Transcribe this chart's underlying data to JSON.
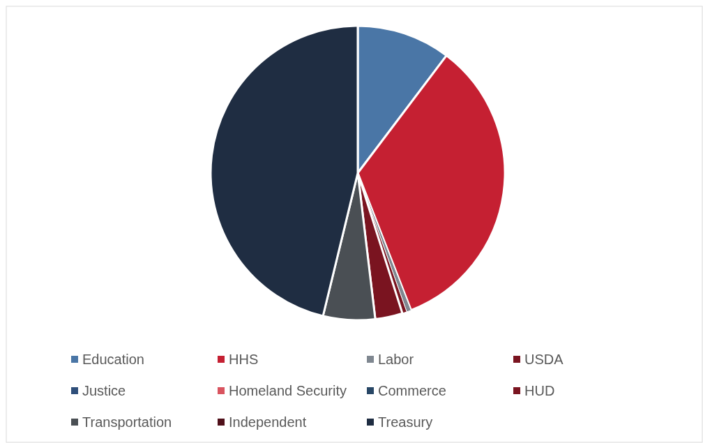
{
  "chart_data": {
    "type": "pie",
    "legend": "bottom",
    "categories": [
      "Education",
      "HHS",
      "Labor",
      "USDA",
      "Justice",
      "Homeland Security",
      "Commerce",
      "HUD",
      "Transportation",
      "Independent",
      "Treasury"
    ],
    "values": [
      10.3,
      33.8,
      0.5,
      0.5,
      null,
      null,
      null,
      3.0,
      5.7,
      null,
      46.2
    ],
    "colors": [
      "#4a76a6",
      "#c52032",
      "#7f8790",
      "#7a1420",
      "#2f4f7a",
      "#d9545f",
      "#284766",
      "#7a1420",
      "#4a4f54",
      "#50101a",
      "#1f2d42"
    ]
  }
}
